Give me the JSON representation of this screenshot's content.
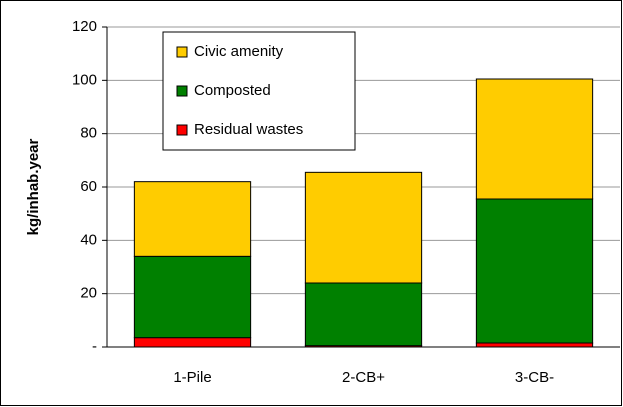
{
  "chart_data": {
    "type": "stacked_bar",
    "y_label": "kg/inhab.year",
    "categories": [
      "1-Pile",
      "2-CB+",
      "3-CB-"
    ],
    "series": [
      {
        "name": "Residual wastes",
        "color": "#ff0000",
        "values": [
          3.5,
          0.5,
          1.5
        ]
      },
      {
        "name": "Composted",
        "color": "#008000",
        "values": [
          30.5,
          23.5,
          54
        ]
      },
      {
        "name": "Civic amenity",
        "color": "#ffcc00",
        "values": [
          28,
          41.5,
          45
        ]
      }
    ],
    "ylim": [
      0,
      120
    ],
    "yticks": [
      {
        "value": 0,
        "label": "-"
      },
      20,
      40,
      60,
      80,
      100,
      120
    ],
    "grid": true,
    "legend": "top-left"
  }
}
